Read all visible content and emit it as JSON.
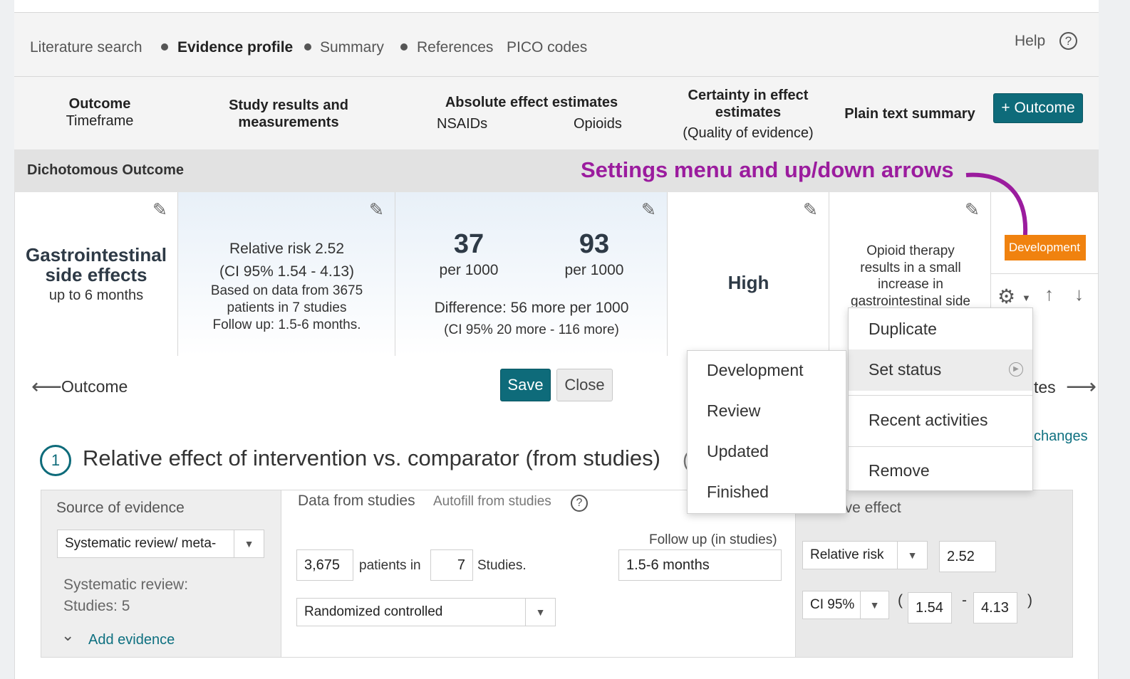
{
  "nav": {
    "items": [
      "Literature search",
      "Evidence profile",
      "Summary",
      "References",
      "PICO codes"
    ],
    "help": "Help",
    "help_icon": "?"
  },
  "header": {
    "outcome": "Outcome",
    "timeframe": "Timeframe",
    "study_results_1": "Study results and",
    "study_results_2": "measurements",
    "absolute": "Absolute effect estimates",
    "nsaids": "NSAIDs",
    "opioids": "Opioids",
    "certainty_1": "Certainty in effect",
    "certainty_2": "estimates",
    "quality": "(Quality of evidence)",
    "plain": "Plain text summary",
    "add_outcome": "+ Outcome"
  },
  "section": {
    "dichotomous": "Dichotomous Outcome",
    "annotation": "Settings menu and up/down arrows"
  },
  "row": {
    "outcome_1": "Gastrointestinal",
    "outcome_2": "side effects",
    "outcome_time": "up to 6 months",
    "rr": "Relative risk 2.52",
    "ci": "(CI 95% 1.54 - 4.13)",
    "based_1": "Based on data from 3675",
    "based_2": "patients in 7 studies",
    "followup": "Follow up: 1.5-6 months.",
    "nsaids_value": "37",
    "nsaids_unit": "per 1000",
    "opioids_value": "93",
    "opioids_unit": "per 1000",
    "difference": "Difference: 56 more per 1000",
    "diff_ci": "(CI 95% 20 more - 116 more)",
    "certainty": "High",
    "plain_1": "Opioid therapy",
    "plain_2": "results in a small",
    "plain_3": "increase in",
    "plain_4": "gastrointestinal side",
    "status_badge": "Development"
  },
  "actions": {
    "back_label": "Outcome",
    "save": "Save",
    "close": "Close",
    "right_label_fragment": "tes",
    "changes_fragment": "changes"
  },
  "step": {
    "number": "1",
    "title": "Relative effect of intervention vs. comparator (from studies)",
    "title_icon": "("
  },
  "form": {
    "source_label": "Source of evidence",
    "source_value": "Systematic review/ meta-",
    "sr_label": "Systematic review:",
    "sr_studies": "Studies: 5",
    "add_evidence": "Add evidence",
    "data_label": "Data from studies",
    "autofill": "Autofill from studies",
    "followup_label": "Follow up (in studies)",
    "patients": "3,675",
    "patients_in": "patients in",
    "studies": "7",
    "studies_label": "Studies.",
    "followup_value": "1.5-6 months",
    "design": "Randomized controlled",
    "rel_label_fragment": "ive effect",
    "rel_type": "Relative risk",
    "rel_value": "2.52",
    "ci_type": "CI 95%",
    "ci_open": "(",
    "ci_low": "1.54",
    "ci_dash": "-",
    "ci_high": "4.13",
    "ci_close": ")"
  },
  "settings_menu": {
    "items": [
      "Duplicate",
      "Set status",
      "Recent activities",
      "Remove"
    ]
  },
  "status_menu": {
    "items": [
      "Development",
      "Review",
      "Updated",
      "Finished"
    ]
  },
  "colors": {
    "teal": "#0e6b7a",
    "annotation": "#9b1c9e",
    "badge": "#f0820f"
  }
}
